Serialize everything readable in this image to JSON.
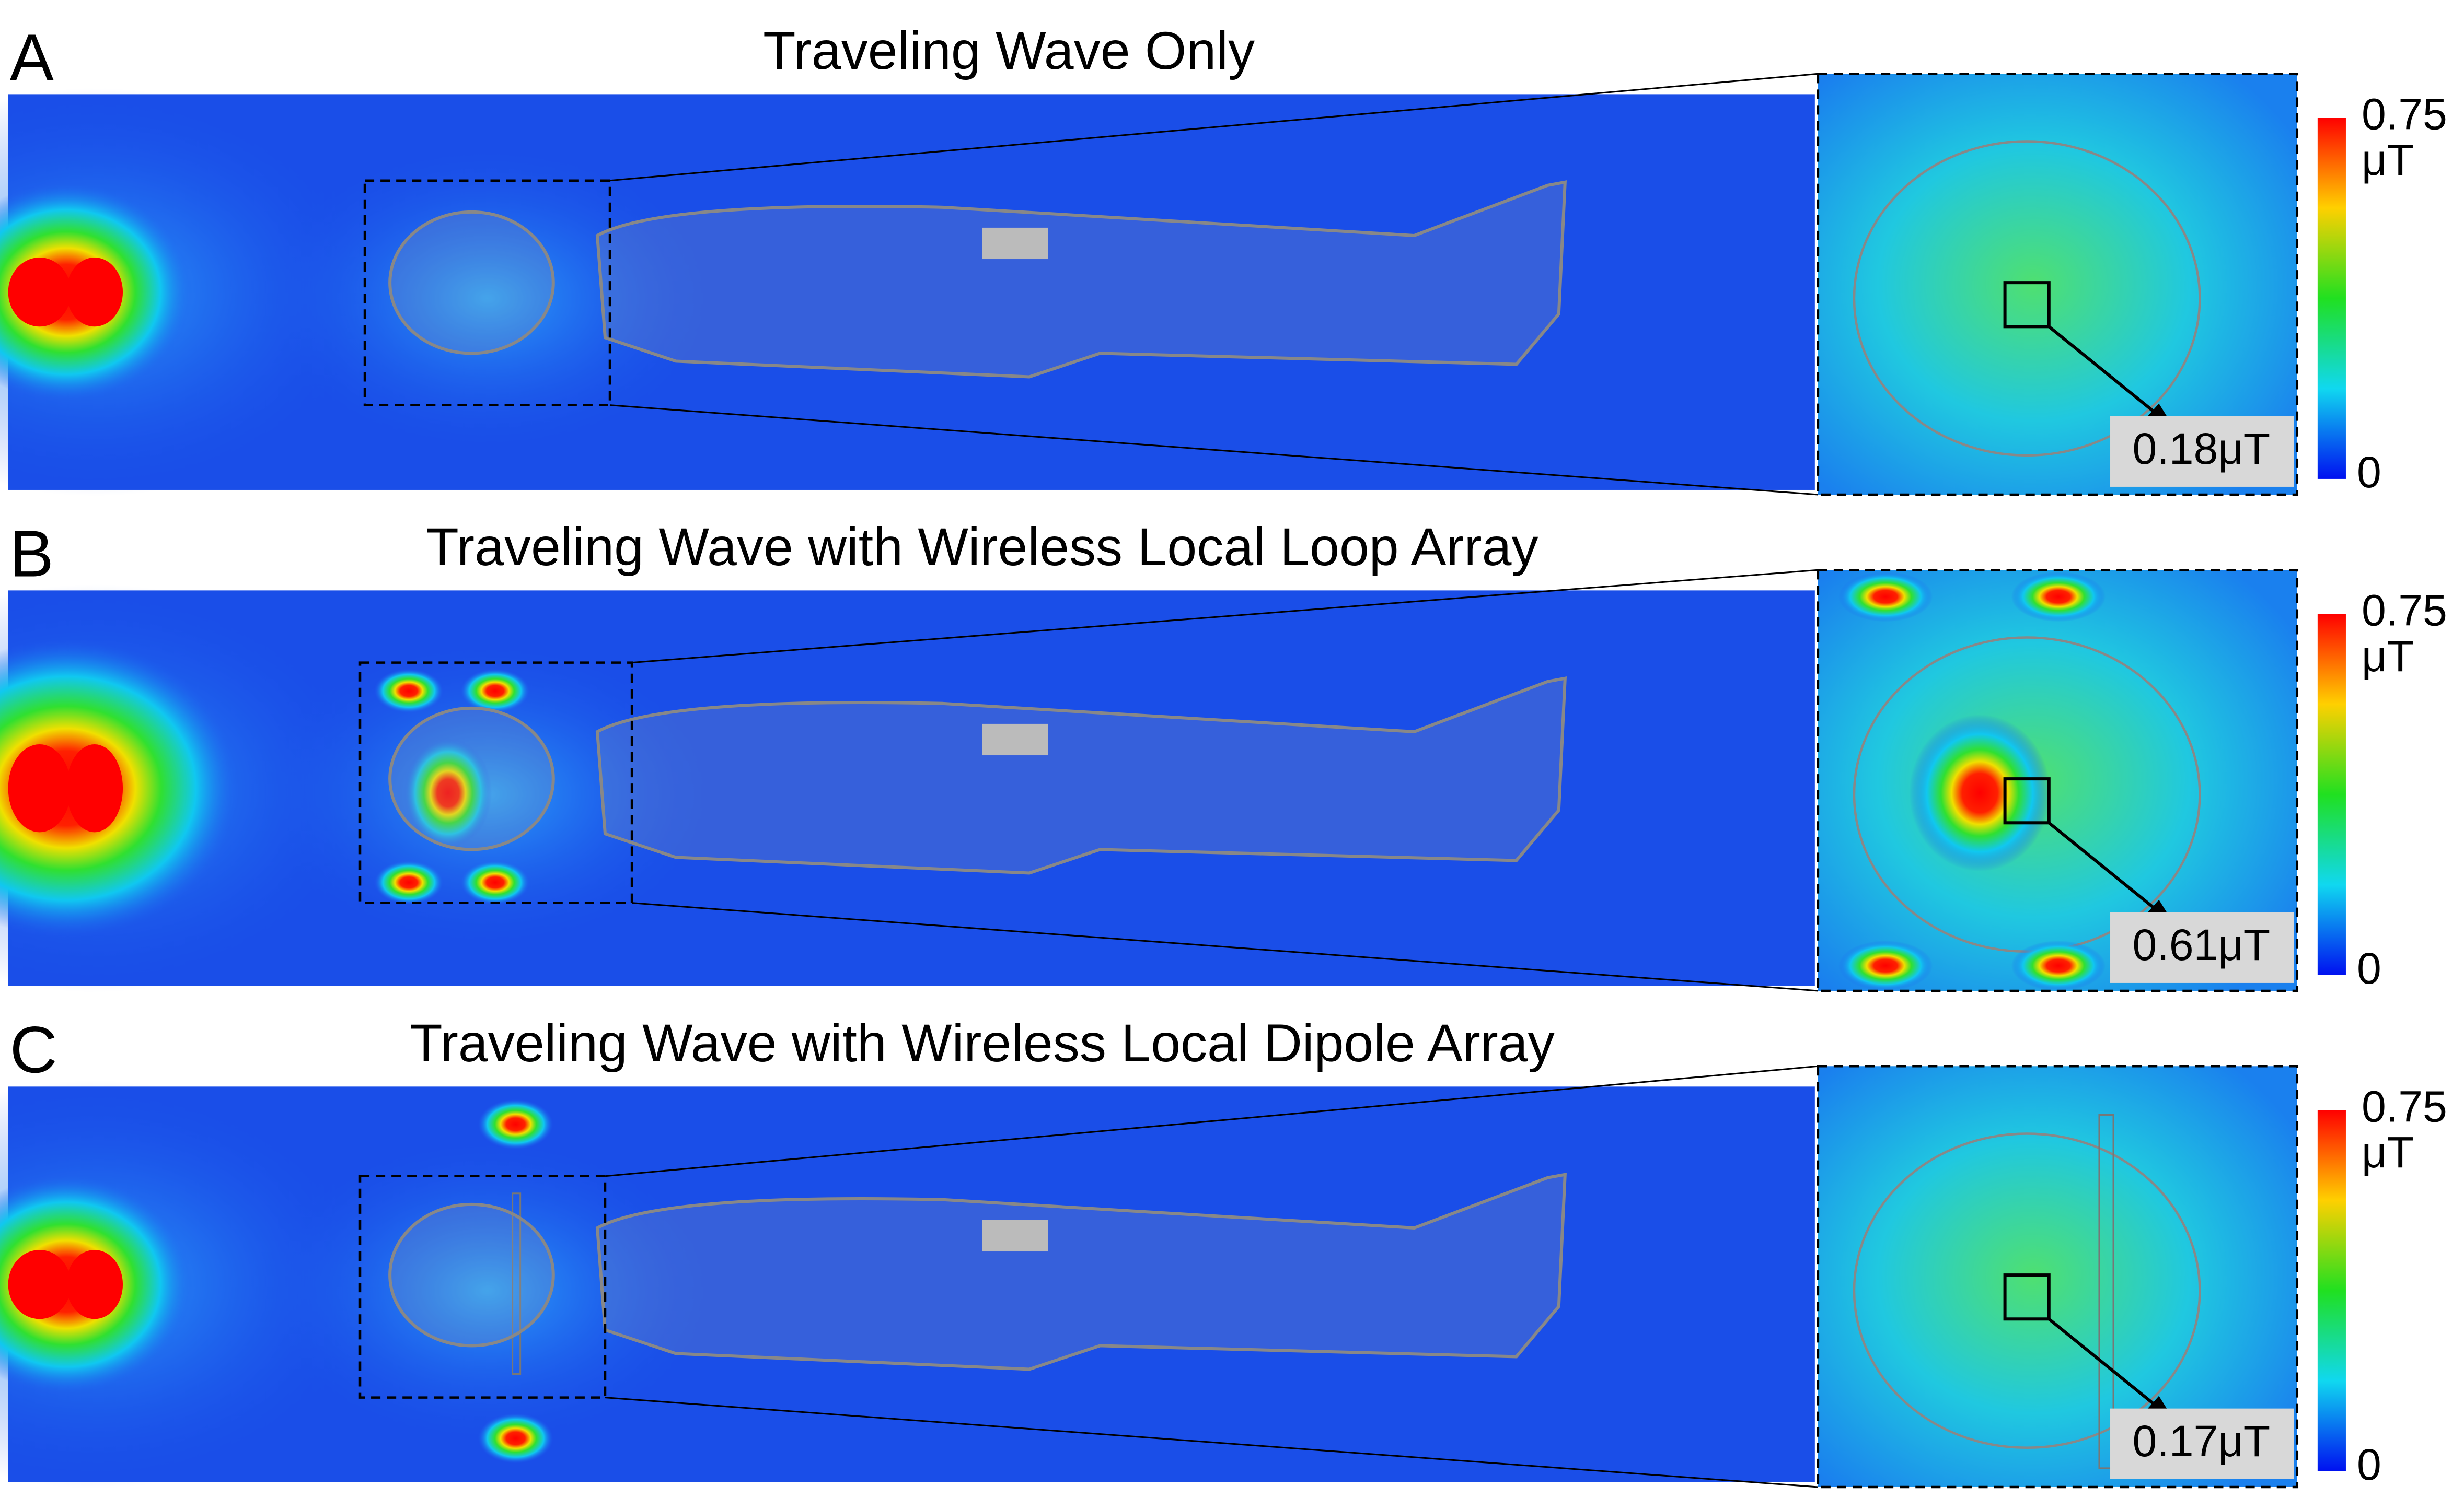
{
  "panels": [
    {
      "label": "A",
      "title": "Traveling Wave Only",
      "measurement": "0.18μT",
      "colorbar": {
        "max": "0.75",
        "unit": "μT",
        "min": "0"
      }
    },
    {
      "label": "B",
      "title": "Traveling Wave with Wireless Local Loop Array",
      "measurement": "0.61μT",
      "colorbar": {
        "max": "0.75",
        "unit": "μT",
        "min": "0"
      }
    },
    {
      "label": "C",
      "title": "Traveling Wave with Wireless Local Dipole Array",
      "measurement": "0.17μT",
      "colorbar": {
        "max": "0.75",
        "unit": "μT",
        "min": "0"
      }
    }
  ]
}
